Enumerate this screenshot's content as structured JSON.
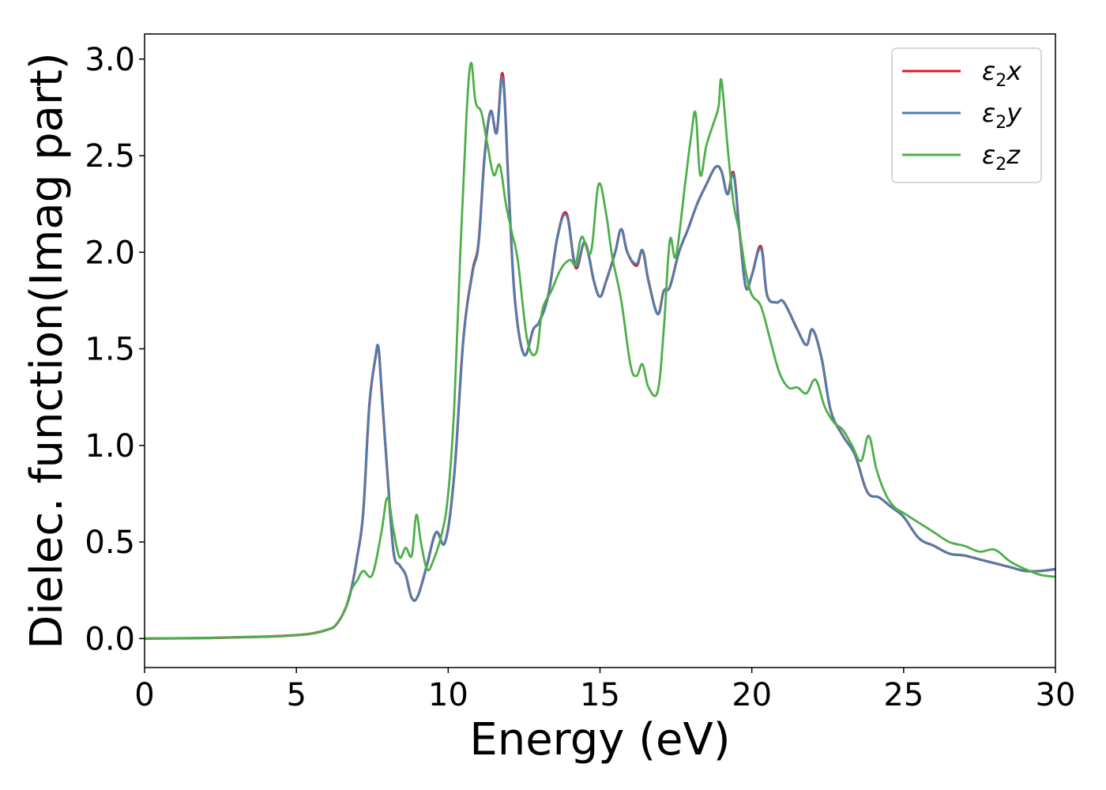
{
  "chart_data": {
    "type": "line",
    "title": "",
    "xlabel": "Energy (eV)",
    "ylabel": "Dielec. function(Imag part)",
    "xlim": [
      0,
      30
    ],
    "ylim": [
      -0.15,
      3.13
    ],
    "xticks": [
      0,
      5,
      10,
      15,
      20,
      25,
      30
    ],
    "xtick_labels": [
      "0",
      "5",
      "10",
      "15",
      "20",
      "25",
      "30"
    ],
    "yticks": [
      0.0,
      0.5,
      1.0,
      1.5,
      2.0,
      2.5,
      3.0
    ],
    "ytick_labels": [
      "0.0",
      "0.5",
      "1.0",
      "1.5",
      "2.0",
      "2.5",
      "3.0"
    ],
    "grid": false,
    "legend_position": "top-right",
    "series": [
      {
        "name": "ε2x",
        "legend_base": "ε",
        "legend_sub": "2",
        "legend_var": "x",
        "color": "#e41a1c",
        "x": [
          0,
          2,
          4,
          5,
          5.5,
          6,
          6.3,
          6.6,
          6.8,
          7.0,
          7.2,
          7.4,
          7.6,
          7.7,
          7.8,
          8.0,
          8.2,
          8.4,
          8.6,
          8.8,
          9.0,
          9.3,
          9.6,
          9.9,
          10.2,
          10.5,
          10.8,
          11.0,
          11.2,
          11.4,
          11.6,
          11.8,
          12.0,
          12.2,
          12.5,
          12.8,
          13.0,
          13.3,
          13.6,
          13.9,
          14.2,
          14.5,
          14.8,
          15.0,
          15.2,
          15.5,
          15.7,
          15.9,
          16.2,
          16.4,
          16.6,
          16.9,
          17.1,
          17.3,
          17.6,
          17.9,
          18.2,
          18.5,
          18.8,
          19.0,
          19.2,
          19.4,
          19.6,
          19.8,
          20.0,
          20.3,
          20.5,
          20.8,
          21.0,
          21.2,
          21.5,
          21.8,
          22.0,
          22.3,
          22.6,
          23.0,
          23.4,
          23.8,
          24.2,
          24.6,
          25.0,
          25.5,
          26.0,
          26.5,
          27.0,
          27.5,
          28.0,
          28.5,
          29.0,
          29.5,
          30.0
        ],
        "y": [
          0.0,
          0.003,
          0.01,
          0.018,
          0.026,
          0.045,
          0.07,
          0.15,
          0.25,
          0.42,
          0.65,
          1.2,
          1.45,
          1.51,
          1.3,
          0.85,
          0.45,
          0.38,
          0.33,
          0.21,
          0.22,
          0.38,
          0.55,
          0.5,
          0.85,
          1.55,
          1.9,
          2.05,
          2.5,
          2.73,
          2.62,
          2.92,
          2.3,
          1.75,
          1.47,
          1.6,
          1.64,
          1.78,
          2.08,
          2.2,
          1.92,
          2.05,
          1.85,
          1.77,
          1.85,
          2.0,
          2.12,
          2.0,
          1.93,
          2.01,
          1.85,
          1.68,
          1.8,
          1.82,
          2.0,
          2.12,
          2.25,
          2.35,
          2.44,
          2.42,
          2.3,
          2.41,
          2.1,
          1.82,
          1.88,
          2.03,
          1.78,
          1.74,
          1.75,
          1.7,
          1.6,
          1.52,
          1.6,
          1.45,
          1.18,
          1.05,
          0.95,
          0.76,
          0.73,
          0.68,
          0.63,
          0.52,
          0.48,
          0.44,
          0.43,
          0.41,
          0.39,
          0.37,
          0.35,
          0.35,
          0.36
        ]
      },
      {
        "name": "ε2y",
        "legend_base": "ε",
        "legend_sub": "2",
        "legend_var": "y",
        "color": "#4a80b0",
        "x": [
          0,
          2,
          4,
          5,
          5.5,
          6,
          6.3,
          6.6,
          6.8,
          7.0,
          7.2,
          7.4,
          7.6,
          7.7,
          7.8,
          8.0,
          8.2,
          8.4,
          8.6,
          8.8,
          9.0,
          9.3,
          9.6,
          9.9,
          10.2,
          10.5,
          10.8,
          11.0,
          11.2,
          11.4,
          11.6,
          11.8,
          12.0,
          12.2,
          12.5,
          12.8,
          13.0,
          13.3,
          13.6,
          13.9,
          14.2,
          14.5,
          14.8,
          15.0,
          15.2,
          15.5,
          15.7,
          15.9,
          16.2,
          16.4,
          16.6,
          16.9,
          17.1,
          17.3,
          17.6,
          17.9,
          18.2,
          18.5,
          18.8,
          19.0,
          19.2,
          19.4,
          19.6,
          19.8,
          20.0,
          20.3,
          20.5,
          20.8,
          21.0,
          21.2,
          21.5,
          21.8,
          22.0,
          22.3,
          22.6,
          23.0,
          23.4,
          23.8,
          24.2,
          24.6,
          25.0,
          25.5,
          26.0,
          26.5,
          27.0,
          27.5,
          28.0,
          28.5,
          29.0,
          29.5,
          30.0
        ],
        "y": [
          0.0,
          0.003,
          0.01,
          0.018,
          0.026,
          0.045,
          0.07,
          0.15,
          0.25,
          0.42,
          0.65,
          1.2,
          1.45,
          1.51,
          1.3,
          0.85,
          0.45,
          0.38,
          0.33,
          0.21,
          0.22,
          0.38,
          0.55,
          0.5,
          0.85,
          1.55,
          1.89,
          2.04,
          2.5,
          2.73,
          2.62,
          2.9,
          2.3,
          1.75,
          1.47,
          1.6,
          1.64,
          1.78,
          2.08,
          2.19,
          1.93,
          2.05,
          1.85,
          1.77,
          1.85,
          2.0,
          2.12,
          2.0,
          1.94,
          2.01,
          1.85,
          1.68,
          1.8,
          1.82,
          2.0,
          2.12,
          2.25,
          2.35,
          2.44,
          2.42,
          2.3,
          2.4,
          2.1,
          1.82,
          1.88,
          2.02,
          1.78,
          1.74,
          1.75,
          1.7,
          1.6,
          1.52,
          1.6,
          1.45,
          1.18,
          1.05,
          0.95,
          0.76,
          0.73,
          0.68,
          0.63,
          0.52,
          0.48,
          0.44,
          0.43,
          0.41,
          0.39,
          0.37,
          0.35,
          0.35,
          0.36
        ]
      },
      {
        "name": "ε2z",
        "legend_base": "ε",
        "legend_sub": "2",
        "legend_var": "z",
        "color": "#4daf4a",
        "x": [
          0,
          2,
          4,
          5,
          5.5,
          6,
          6.3,
          6.6,
          6.8,
          7.0,
          7.2,
          7.5,
          7.8,
          8.0,
          8.2,
          8.4,
          8.6,
          8.8,
          8.95,
          9.1,
          9.3,
          9.5,
          9.8,
          10.0,
          10.2,
          10.4,
          10.6,
          10.75,
          10.9,
          11.1,
          11.3,
          11.5,
          11.7,
          11.9,
          12.1,
          12.3,
          12.6,
          12.9,
          13.1,
          13.4,
          13.7,
          14.0,
          14.2,
          14.4,
          14.7,
          14.95,
          15.2,
          15.4,
          15.7,
          16.0,
          16.2,
          16.4,
          16.6,
          16.9,
          17.1,
          17.3,
          17.5,
          17.8,
          18.0,
          18.15,
          18.3,
          18.5,
          18.7,
          18.9,
          19.0,
          19.2,
          19.4,
          19.6,
          19.8,
          20.0,
          20.3,
          20.6,
          20.9,
          21.2,
          21.5,
          21.8,
          22.1,
          22.4,
          22.7,
          23.0,
          23.3,
          23.6,
          23.85,
          24.1,
          24.4,
          24.7,
          25.0,
          25.5,
          26.0,
          26.5,
          27.0,
          27.5,
          28.0,
          28.5,
          29.0,
          29.5,
          30.0
        ],
        "y": [
          0.0,
          0.003,
          0.01,
          0.018,
          0.026,
          0.045,
          0.07,
          0.15,
          0.25,
          0.3,
          0.35,
          0.33,
          0.55,
          0.73,
          0.56,
          0.42,
          0.47,
          0.43,
          0.64,
          0.5,
          0.36,
          0.4,
          0.55,
          0.75,
          1.2,
          2.0,
          2.7,
          2.98,
          2.78,
          2.72,
          2.55,
          2.4,
          2.45,
          2.25,
          2.1,
          1.95,
          1.55,
          1.48,
          1.7,
          1.8,
          1.91,
          1.96,
          1.94,
          2.08,
          2.0,
          2.35,
          2.2,
          1.98,
          1.75,
          1.42,
          1.36,
          1.42,
          1.3,
          1.28,
          1.6,
          2.06,
          1.98,
          2.35,
          2.6,
          2.72,
          2.4,
          2.55,
          2.65,
          2.75,
          2.89,
          2.55,
          2.25,
          2.1,
          1.9,
          1.78,
          1.72,
          1.55,
          1.38,
          1.3,
          1.3,
          1.27,
          1.34,
          1.2,
          1.12,
          1.08,
          1.0,
          0.92,
          1.05,
          0.88,
          0.75,
          0.68,
          0.65,
          0.6,
          0.55,
          0.5,
          0.48,
          0.45,
          0.46,
          0.4,
          0.36,
          0.33,
          0.32
        ]
      }
    ]
  }
}
